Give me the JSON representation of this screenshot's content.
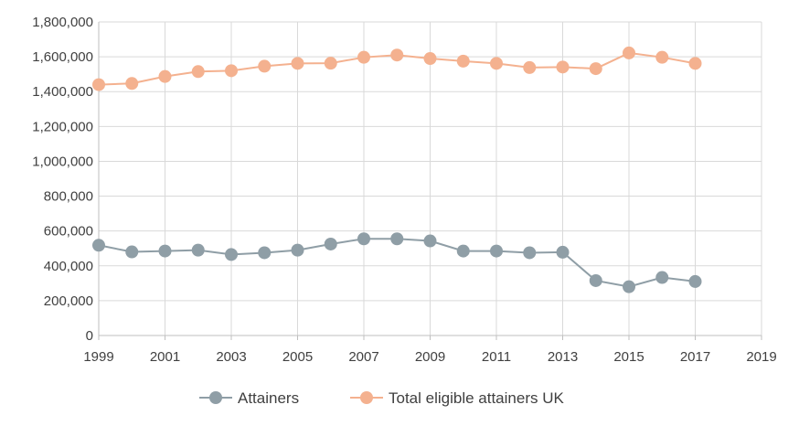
{
  "chart_data": {
    "type": "line",
    "x": [
      1999,
      2000,
      2001,
      2002,
      2003,
      2004,
      2005,
      2006,
      2007,
      2008,
      2009,
      2010,
      2011,
      2012,
      2013,
      2014,
      2015,
      2016,
      2017
    ],
    "series": [
      {
        "name": "Attainers",
        "color": "#8f9ea6",
        "values": [
          518000,
          480000,
          485000,
          490000,
          465000,
          475000,
          490000,
          525000,
          555000,
          555000,
          543000,
          485000,
          485000,
          475000,
          478000,
          315000,
          280000,
          333000,
          310000
        ]
      },
      {
        "name": "Total eligible attainers UK",
        "color": "#f4b18f",
        "values": [
          1440000,
          1447000,
          1487000,
          1515000,
          1520000,
          1546000,
          1562000,
          1563000,
          1597000,
          1610000,
          1590000,
          1575000,
          1562000,
          1538000,
          1541000,
          1532000,
          1622000,
          1597000,
          1562000
        ]
      }
    ],
    "xlim": [
      1999,
      2019
    ],
    "xticks": [
      "1999",
      "2001",
      "2003",
      "2005",
      "2007",
      "2009",
      "2011",
      "2013",
      "2015",
      "2017",
      "2019"
    ],
    "xtick_values": [
      1999,
      2001,
      2003,
      2005,
      2007,
      2009,
      2011,
      2013,
      2015,
      2017,
      2019
    ],
    "ylim": [
      0,
      1800000
    ],
    "yticks": [
      "0",
      "200,000",
      "400,000",
      "600,000",
      "800,000",
      "1,000,000",
      "1,200,000",
      "1,400,000",
      "1,600,000",
      "1,800,000"
    ],
    "ytick_values": [
      0,
      200000,
      400000,
      600000,
      800000,
      1000000,
      1200000,
      1400000,
      1600000,
      1800000
    ],
    "grid": true,
    "legend_position": "bottom",
    "title": "",
    "xlabel": "",
    "ylabel": ""
  }
}
